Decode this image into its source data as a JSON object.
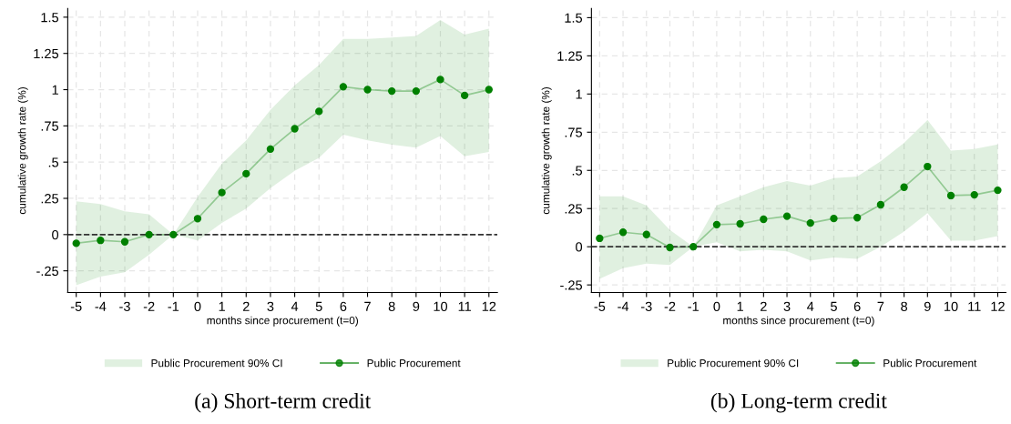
{
  "chart_data": [
    {
      "type": "line",
      "title": "(a) Short-term credit",
      "xlabel": "months since procurement (t=0)",
      "ylabel": "cumulative growth rate (%)",
      "x": [
        -5,
        -4,
        -3,
        -2,
        -1,
        0,
        1,
        2,
        3,
        4,
        5,
        6,
        7,
        8,
        9,
        10,
        11,
        12
      ],
      "series": [
        {
          "name": "Public Procurement",
          "color": "#008000",
          "values": [
            -0.06,
            -0.04,
            -0.05,
            0.0,
            0,
            0.11,
            0.29,
            0.42,
            0.59,
            0.73,
            0.85,
            1.02,
            1.0,
            0.99,
            0.99,
            1.07,
            0.96,
            1.0
          ],
          "lower": [
            -0.35,
            -0.29,
            -0.26,
            -0.14,
            0,
            -0.04,
            0.08,
            0.18,
            0.32,
            0.44,
            0.53,
            0.69,
            0.65,
            0.62,
            0.6,
            0.68,
            0.54,
            0.57
          ],
          "upper": [
            0.23,
            0.21,
            0.16,
            0.14,
            0,
            0.26,
            0.49,
            0.65,
            0.86,
            1.03,
            1.17,
            1.35,
            1.35,
            1.36,
            1.37,
            1.48,
            1.38,
            1.42
          ]
        }
      ],
      "annotations": [
        "Public Procurement 90% CI"
      ],
      "xlim": [
        -5.35,
        12.35
      ],
      "xticks": [
        -5,
        -4,
        -3,
        -2,
        -1,
        0,
        1,
        2,
        3,
        4,
        5,
        6,
        7,
        8,
        9,
        10,
        11,
        12
      ],
      "ylim": [
        -0.4,
        1.56
      ],
      "yticks": [
        {
          "value": -0.25,
          "label": "-.25"
        },
        0,
        {
          "value": 0.25,
          "label": ".25"
        },
        {
          "value": 0.5,
          "label": ".5"
        },
        {
          "value": 0.75,
          "label": ".75"
        },
        1,
        1.25,
        1.5
      ],
      "ref_lines": [
        {
          "axis": "y",
          "value": 0,
          "color": "#333333",
          "line_style": "dashed"
        }
      ],
      "grid": true,
      "legend": "bottom",
      "marker": "circle",
      "line_style": "solid"
    },
    {
      "type": "line",
      "title": "(b) Long-term credit",
      "xlabel": "months since procurement (t=0)",
      "ylabel": "cumulative growth rate (%)",
      "x": [
        -5,
        -4,
        -3,
        -2,
        -1,
        0,
        1,
        2,
        3,
        4,
        5,
        6,
        7,
        8,
        9,
        10,
        11,
        12
      ],
      "series": [
        {
          "name": "Public Procurement",
          "color": "#008000",
          "values": [
            0.055,
            0.095,
            0.08,
            -0.005,
            0,
            0.145,
            0.15,
            0.18,
            0.2,
            0.155,
            0.185,
            0.19,
            0.275,
            0.39,
            0.525,
            0.335,
            0.34,
            0.37
          ],
          "lower": [
            -0.21,
            -0.14,
            -0.11,
            -0.12,
            0,
            0.03,
            -0.03,
            -0.02,
            -0.03,
            -0.09,
            -0.07,
            -0.08,
            0.0,
            0.1,
            0.22,
            0.04,
            0.04,
            0.07
          ],
          "upper": [
            0.33,
            0.33,
            0.27,
            0.11,
            0,
            0.27,
            0.33,
            0.39,
            0.43,
            0.4,
            0.45,
            0.46,
            0.56,
            0.68,
            0.83,
            0.63,
            0.64,
            0.67
          ]
        }
      ],
      "annotations": [
        "Public Procurement 90% CI"
      ],
      "xlim": [
        -5.35,
        12.35
      ],
      "xticks": [
        -5,
        -4,
        -3,
        -2,
        -1,
        0,
        1,
        2,
        3,
        4,
        5,
        6,
        7,
        8,
        9,
        10,
        11,
        12
      ],
      "ylim": [
        -0.3,
        1.56
      ],
      "yticks": [
        {
          "value": -0.25,
          "label": "-.25"
        },
        0,
        {
          "value": 0.25,
          "label": ".25"
        },
        {
          "value": 0.5,
          "label": ".5"
        },
        {
          "value": 0.75,
          "label": ".75"
        },
        1,
        1.25,
        1.5
      ],
      "ref_lines": [
        {
          "axis": "y",
          "value": 0,
          "color": "#333333",
          "line_style": "dashed"
        }
      ],
      "grid": true,
      "legend": "bottom",
      "marker": "circle",
      "line_style": "solid"
    }
  ]
}
